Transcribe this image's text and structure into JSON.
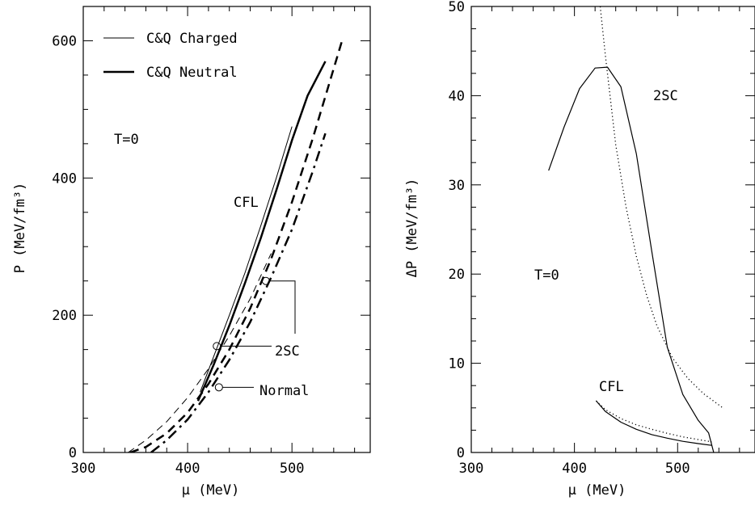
{
  "chart_data": [
    {
      "type": "line",
      "panel": "left",
      "xlabel": "μ (MeV)",
      "ylabel": "P (MeV/fm³)",
      "xlim": [
        300,
        575
      ],
      "ylim": [
        0,
        650
      ],
      "xticks": [
        300,
        400,
        500
      ],
      "yticks": [
        0,
        200,
        400,
        600
      ],
      "legend": {
        "placement": "top-left",
        "entries": [
          {
            "label": "C&Q Charged",
            "style": "thin solid"
          },
          {
            "label": "C&Q Neutral",
            "style": "thick solid"
          }
        ]
      },
      "annotations": [
        "T=0",
        "CFL",
        "2SC",
        "Normal"
      ],
      "series": [
        {
          "style": "thin-dashed",
          "x": [
            343,
            360,
            380,
            400,
            420,
            440,
            460,
            480
          ],
          "y": [
            0,
            18,
            45,
            80,
            122,
            170,
            224,
            290
          ]
        },
        {
          "style": "thin-solid",
          "x": [
            412,
            425,
            440,
            455,
            470,
            485,
            500
          ],
          "y": [
            88,
            140,
            200,
            262,
            330,
            400,
            475
          ]
        },
        {
          "style": "thick-solid",
          "x": [
            410,
            425,
            440,
            455,
            470,
            485,
            500,
            515,
            532
          ],
          "y": [
            75,
            128,
            185,
            247,
            312,
            382,
            455,
            520,
            570
          ]
        },
        {
          "style": "thick-dashed",
          "x": [
            345,
            360,
            380,
            400,
            420,
            440,
            460,
            480,
            500,
            520,
            548
          ],
          "y": [
            0,
            8,
            28,
            58,
            100,
            150,
            210,
            282,
            365,
            458,
            600
          ]
        },
        {
          "style": "thick-dashdot",
          "x": [
            365,
            380,
            400,
            420,
            440,
            460,
            480,
            500,
            520,
            532
          ],
          "y": [
            0,
            18,
            48,
            88,
            135,
            190,
            255,
            325,
            410,
            465
          ]
        }
      ],
      "markers": [
        {
          "label": "2SC",
          "x": 428,
          "y": 155
        },
        {
          "label": "2SC",
          "x": 475,
          "y": 250
        },
        {
          "label": "Normal",
          "x": 430,
          "y": 95
        }
      ]
    },
    {
      "type": "line",
      "panel": "right",
      "xlabel": "μ (MeV)",
      "ylabel": "ΔP (MeV/fm³)",
      "xlim": [
        300,
        575
      ],
      "ylim": [
        0,
        50
      ],
      "xticks": [
        300,
        400,
        500
      ],
      "yticks": [
        0,
        10,
        20,
        30,
        40,
        50
      ],
      "annotations": [
        "2SC",
        "T=0",
        "CFL"
      ],
      "series": [
        {
          "style": "solid",
          "name": "2SC",
          "x": [
            375,
            390,
            405,
            420,
            432,
            445,
            460,
            475,
            490,
            505,
            520,
            530,
            535
          ],
          "y": [
            31.6,
            36.5,
            40.8,
            43.1,
            43.2,
            41.0,
            33.5,
            22.5,
            11.8,
            6.5,
            3.6,
            2.2,
            0
          ]
        },
        {
          "style": "dotted",
          "name": "2SC",
          "x": [
            425,
            430,
            440,
            450,
            460,
            470,
            480,
            495,
            510,
            525,
            545
          ],
          "y": [
            50,
            44.5,
            34.5,
            27.5,
            22.0,
            17.6,
            14.2,
            10.6,
            8.3,
            6.6,
            4.9
          ]
        },
        {
          "style": "solid",
          "name": "CFL",
          "x": [
            421,
            430,
            445,
            460,
            475,
            490,
            505,
            520,
            533
          ],
          "y": [
            5.8,
            4.6,
            3.4,
            2.6,
            2.0,
            1.6,
            1.25,
            1.0,
            0.8
          ]
        },
        {
          "style": "dotted",
          "name": "CFL",
          "x": [
            421,
            430,
            445,
            460,
            475,
            490,
            505,
            520,
            533
          ],
          "y": [
            5.8,
            4.8,
            3.8,
            3.1,
            2.6,
            2.15,
            1.75,
            1.45,
            1.2
          ]
        }
      ]
    }
  ]
}
